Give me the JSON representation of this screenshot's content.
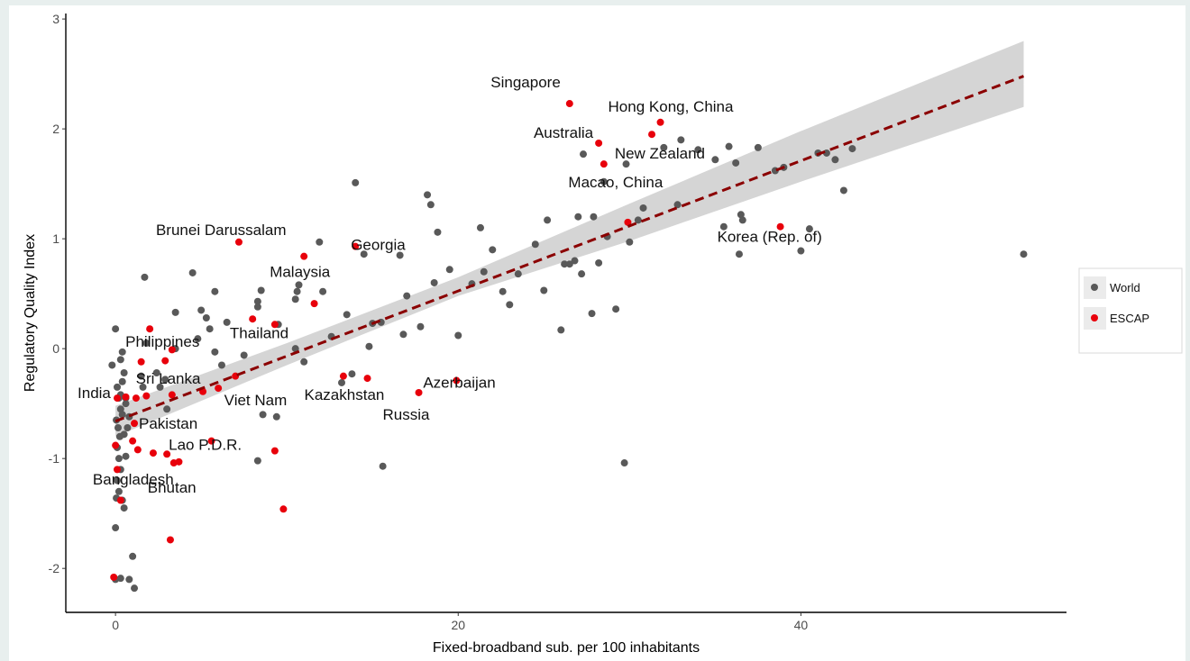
{
  "chart_data": {
    "type": "scatter",
    "title": "",
    "xlabel": "Fixed-broadband sub. per 100 inhabitants",
    "ylabel": "Regulatory Quality Index",
    "xlim": [
      -2.9,
      55.5
    ],
    "ylim": [
      -2.4,
      3.05
    ],
    "x_ticks": [
      0,
      20,
      40
    ],
    "y_ticks": [
      -2,
      -1,
      0,
      1,
      2,
      3
    ],
    "grid": false,
    "legend_position": "right",
    "colors": {
      "World": "#595959",
      "ESCAP": "#e8000b",
      "trend": "#8b0000",
      "band": "#d3d3d3"
    },
    "legend": [
      {
        "name": "World",
        "color": "#595959"
      },
      {
        "name": "ESCAP",
        "color": "#e8000b"
      }
    ],
    "trend_line": {
      "style": "dashed",
      "x": [
        0,
        53
      ],
      "y": [
        -0.66,
        2.48
      ]
    },
    "confidence_band": {
      "x": [
        0,
        10,
        20,
        30,
        40,
        53
      ],
      "upper": [
        -0.52,
        0.05,
        0.65,
        1.32,
        1.98,
        2.8
      ],
      "lower": [
        -0.8,
        -0.15,
        0.48,
        0.98,
        1.52,
        2.2
      ]
    },
    "series": [
      {
        "name": "World",
        "points": [
          [
            0.0,
            0.18
          ],
          [
            -0.2,
            -0.15
          ],
          [
            0.1,
            -0.35
          ],
          [
            0.2,
            -0.45
          ],
          [
            0.3,
            -0.55
          ],
          [
            0.05,
            -0.65
          ],
          [
            0.15,
            -0.72
          ],
          [
            0.25,
            -0.8
          ],
          [
            0.1,
            -0.9
          ],
          [
            0.2,
            -1.0
          ],
          [
            0.3,
            -1.1
          ],
          [
            0.1,
            -1.2
          ],
          [
            0.2,
            -1.3
          ],
          [
            0.05,
            -1.36
          ],
          [
            0.0,
            -1.63
          ],
          [
            0.3,
            -2.09
          ],
          [
            0.0,
            -2.1
          ],
          [
            0.8,
            -2.1
          ],
          [
            1.1,
            -2.18
          ],
          [
            1.0,
            -1.89
          ],
          [
            0.5,
            -1.45
          ],
          [
            0.4,
            -1.38
          ],
          [
            0.6,
            -0.98
          ],
          [
            0.5,
            -0.78
          ],
          [
            0.7,
            -0.72
          ],
          [
            0.4,
            -0.6
          ],
          [
            0.6,
            -0.5
          ],
          [
            0.3,
            -0.42
          ],
          [
            0.4,
            -0.3
          ],
          [
            0.5,
            -0.22
          ],
          [
            0.4,
            -0.03
          ],
          [
            0.3,
            -0.1
          ],
          [
            0.6,
            -0.45
          ],
          [
            0.8,
            -0.62
          ],
          [
            1.5,
            -0.25
          ],
          [
            1.6,
            -0.35
          ],
          [
            1.8,
            0.05
          ],
          [
            1.7,
            0.65
          ],
          [
            2.4,
            -0.22
          ],
          [
            2.6,
            -0.35
          ],
          [
            2.9,
            -0.28
          ],
          [
            3.0,
            -0.55
          ],
          [
            3.5,
            0.33
          ],
          [
            3.5,
            0.0
          ],
          [
            4.5,
            0.69
          ],
          [
            4.8,
            0.09
          ],
          [
            5.0,
            0.35
          ],
          [
            5.3,
            0.28
          ],
          [
            5.5,
            0.18
          ],
          [
            5.8,
            -0.03
          ],
          [
            5.8,
            0.52
          ],
          [
            6.2,
            -0.15
          ],
          [
            6.5,
            0.24
          ],
          [
            7.5,
            -0.06
          ],
          [
            8.3,
            0.43
          ],
          [
            8.3,
            0.38
          ],
          [
            8.5,
            0.53
          ],
          [
            8.6,
            -0.6
          ],
          [
            8.3,
            -1.02
          ],
          [
            9.4,
            -0.62
          ],
          [
            9.5,
            0.22
          ],
          [
            10.5,
            0.45
          ],
          [
            10.6,
            0.52
          ],
          [
            10.7,
            0.58
          ],
          [
            10.5,
            0.0
          ],
          [
            11.9,
            0.97
          ],
          [
            12.1,
            0.52
          ],
          [
            13.5,
            0.31
          ],
          [
            13.2,
            -0.31
          ],
          [
            13.8,
            -0.23
          ],
          [
            14.0,
            1.51
          ],
          [
            14.5,
            0.86
          ],
          [
            14.8,
            0.02
          ],
          [
            15.0,
            0.23
          ],
          [
            15.5,
            0.24
          ],
          [
            15.6,
            -1.07
          ],
          [
            16.6,
            0.85
          ],
          [
            16.8,
            0.13
          ],
          [
            17.0,
            0.48
          ],
          [
            17.8,
            0.2
          ],
          [
            18.2,
            1.4
          ],
          [
            18.4,
            1.31
          ],
          [
            18.6,
            0.6
          ],
          [
            18.8,
            1.06
          ],
          [
            20.0,
            0.12
          ],
          [
            20.8,
            0.59
          ],
          [
            21.3,
            1.1
          ],
          [
            21.5,
            0.7
          ],
          [
            22.0,
            0.9
          ],
          [
            23.0,
            0.4
          ],
          [
            23.5,
            0.68
          ],
          [
            25.0,
            0.53
          ],
          [
            25.2,
            1.17
          ],
          [
            26.0,
            0.17
          ],
          [
            26.2,
            0.77
          ],
          [
            26.5,
            0.77
          ],
          [
            26.8,
            0.8
          ],
          [
            27.0,
            1.2
          ],
          [
            27.2,
            0.68
          ],
          [
            27.3,
            1.77
          ],
          [
            27.8,
            0.32
          ],
          [
            27.9,
            1.2
          ],
          [
            28.2,
            0.78
          ],
          [
            28.5,
            1.52
          ],
          [
            28.7,
            1.02
          ],
          [
            29.2,
            0.36
          ],
          [
            29.7,
            -1.04
          ],
          [
            29.8,
            1.68
          ],
          [
            30.0,
            0.97
          ],
          [
            30.8,
            1.28
          ],
          [
            32.0,
            1.83
          ],
          [
            32.8,
            1.31
          ],
          [
            33.0,
            1.9
          ],
          [
            34.0,
            1.81
          ],
          [
            35.0,
            1.72
          ],
          [
            35.5,
            1.11
          ],
          [
            35.8,
            1.84
          ],
          [
            36.2,
            1.69
          ],
          [
            36.4,
            0.86
          ],
          [
            36.5,
            1.22
          ],
          [
            36.6,
            1.17
          ],
          [
            37.5,
            1.83
          ],
          [
            38.5,
            1.62
          ],
          [
            39.0,
            1.65
          ],
          [
            40.0,
            0.89
          ],
          [
            40.5,
            1.09
          ],
          [
            41.0,
            1.78
          ],
          [
            41.5,
            1.78
          ],
          [
            42.0,
            1.72
          ],
          [
            42.5,
            1.44
          ],
          [
            43.0,
            1.82
          ],
          [
            53.0,
            0.86
          ],
          [
            30.5,
            1.17
          ],
          [
            24.5,
            0.95
          ],
          [
            22.6,
            0.52
          ],
          [
            19.5,
            0.72
          ],
          [
            12.6,
            0.11
          ],
          [
            11.0,
            -0.12
          ]
        ]
      },
      {
        "name": "ESCAP",
        "points": [
          [
            -0.1,
            -2.08
          ],
          [
            0.3,
            -1.38
          ],
          [
            0.1,
            -1.1
          ],
          [
            0.0,
            -0.88
          ],
          [
            0.1,
            -0.45
          ],
          [
            1.0,
            -0.84
          ],
          [
            1.1,
            -0.68
          ],
          [
            1.2,
            -0.45
          ],
          [
            1.5,
            -0.12
          ],
          [
            1.8,
            -0.43
          ],
          [
            2.0,
            0.18
          ],
          [
            2.2,
            -0.95
          ],
          [
            3.0,
            -0.96
          ],
          [
            2.9,
            -0.11
          ],
          [
            3.3,
            -0.01
          ],
          [
            3.3,
            -0.42
          ],
          [
            3.4,
            -1.04
          ],
          [
            3.7,
            -1.03
          ],
          [
            3.2,
            -1.74
          ],
          [
            5.1,
            -0.39
          ],
          [
            5.6,
            -0.84
          ],
          [
            6.0,
            -0.36
          ],
          [
            7.0,
            -0.25
          ],
          [
            7.2,
            0.97
          ],
          [
            8.0,
            0.27
          ],
          [
            9.3,
            0.22
          ],
          [
            9.3,
            -0.93
          ],
          [
            9.8,
            -1.46
          ],
          [
            11.0,
            0.84
          ],
          [
            11.6,
            0.41
          ],
          [
            13.3,
            -0.25
          ],
          [
            14.0,
            0.93
          ],
          [
            14.7,
            -0.27
          ],
          [
            17.7,
            -0.4
          ],
          [
            19.9,
            -0.29
          ],
          [
            26.5,
            2.23
          ],
          [
            28.2,
            1.87
          ],
          [
            28.5,
            1.68
          ],
          [
            29.9,
            1.15
          ],
          [
            31.3,
            1.95
          ],
          [
            31.8,
            2.06
          ],
          [
            38.8,
            1.11
          ],
          [
            0.6,
            -0.44
          ],
          [
            1.3,
            -0.92
          ]
        ]
      }
    ],
    "annotations": [
      {
        "text": "Singapore",
        "x": 26.5,
        "y": 2.23
      },
      {
        "text": "Hong Kong, China",
        "x": 31.8,
        "y": 2.06
      },
      {
        "text": "Australia",
        "x": 28.2,
        "y": 1.87
      },
      {
        "text": "New Zealand",
        "x": 28.5,
        "y": 1.68
      },
      {
        "text": "Macao, China",
        "x": 29.9,
        "y": 1.5
      },
      {
        "text": "Korea (Rep. of)",
        "x": 38.8,
        "y": 1.11
      },
      {
        "text": "Brunei Darussalam",
        "x": 7.2,
        "y": 0.97
      },
      {
        "text": "Georgia",
        "x": 14.0,
        "y": 0.93
      },
      {
        "text": "Malaysia",
        "x": 11.0,
        "y": 0.84
      },
      {
        "text": "Thailand",
        "x": 9.3,
        "y": 0.22
      },
      {
        "text": "Philippines",
        "x": 2.0,
        "y": 0.18
      },
      {
        "text": "Kazakhstan",
        "x": 14.7,
        "y": -0.27
      },
      {
        "text": "Azerbaijan",
        "x": 19.9,
        "y": -0.29
      },
      {
        "text": "Sri Lanka",
        "x": 1.5,
        "y": -0.12
      },
      {
        "text": "India",
        "x": 0.1,
        "y": -0.45
      },
      {
        "text": "Russia",
        "x": 17.7,
        "y": -0.4
      },
      {
        "text": "Viet Nam",
        "x": 6.5,
        "y": -0.59
      },
      {
        "text": "Pakistan",
        "x": 1.1,
        "y": -0.68
      },
      {
        "text": "Lao P.D.R.",
        "x": 1.0,
        "y": -0.84
      },
      {
        "text": "Bangladesh",
        "x": 2.2,
        "y": -0.95
      },
      {
        "text": "Bhutan",
        "x": 3.4,
        "y": -1.04
      }
    ]
  }
}
